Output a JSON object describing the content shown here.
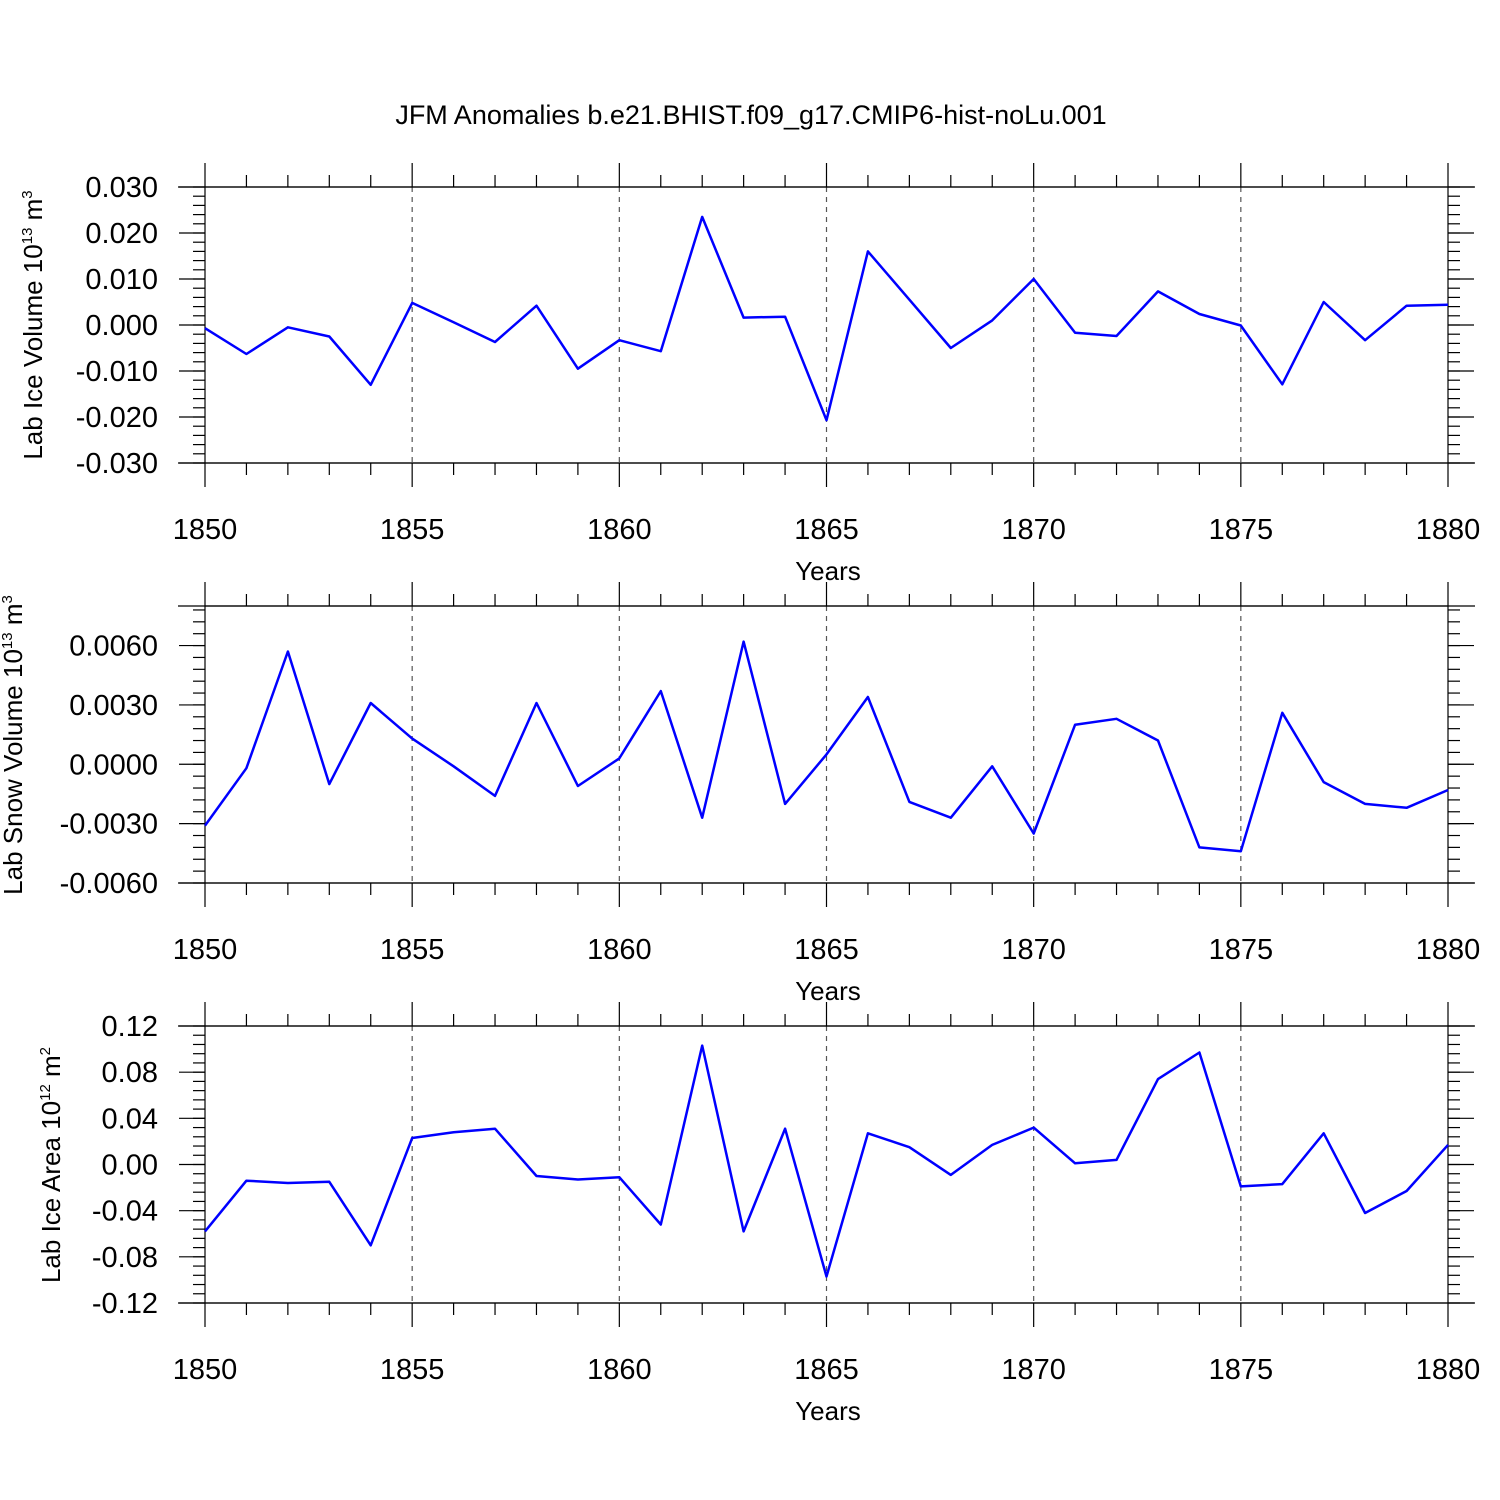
{
  "figure": {
    "title": "JFM Anomalies b.e21.BHIST.f09_g17.CMIP6-hist-noLu.001"
  },
  "colors": {
    "line": "#0000ff",
    "axes": "#000000",
    "grid": "#555555"
  },
  "chart_data": [
    {
      "type": "line",
      "title": "",
      "ylabel": "Lab Ice Volume 10",
      "ylabel_sup": "13",
      "ylabel_unit": "m",
      "ylabel_unit_sup": "3",
      "xlabel": "Years",
      "xlim": [
        1850,
        1880
      ],
      "ylim": [
        -0.03,
        0.03
      ],
      "xticks": [
        "1850",
        "1855",
        "1860",
        "1865",
        "1870",
        "1875",
        "1880"
      ],
      "yticks": [
        -0.03,
        -0.02,
        -0.01,
        0.0,
        0.01,
        0.02,
        0.03
      ],
      "yticklabels": [
        "-0.030",
        "-0.020",
        "-0.010",
        "0.000",
        "0.010",
        "0.020",
        "0.030"
      ],
      "grid": "vertical dashed at 1855, 1860, 1865, 1870, 1875",
      "series": [
        {
          "x": [
            1850,
            1851,
            1852,
            1853,
            1854,
            1855,
            1856,
            1857,
            1858,
            1859,
            1860,
            1861,
            1862,
            1863,
            1864,
            1865,
            1866,
            1867,
            1868,
            1869,
            1870,
            1871,
            1872,
            1873,
            1874,
            1875,
            1876,
            1877,
            1878,
            1879,
            1880
          ],
          "values": [
            -0.0007,
            -0.0063,
            -0.0005,
            -0.0025,
            -0.013,
            0.0048,
            0.0006,
            -0.0037,
            0.0042,
            -0.0095,
            -0.0033,
            -0.0057,
            0.0235,
            0.0016,
            0.0018,
            -0.0207,
            0.016,
            0.0055,
            -0.005,
            0.001,
            0.01,
            -0.0017,
            -0.0024,
            0.0073,
            0.0024,
            -0.0001,
            -0.0129,
            0.005,
            -0.0033,
            0.0042,
            0.0044
          ]
        }
      ]
    },
    {
      "type": "line",
      "title": "",
      "ylabel": "Lab Snow Volume 10",
      "ylabel_sup": "13",
      "ylabel_unit": "m",
      "ylabel_unit_sup": "3",
      "xlabel": "Years",
      "xlim": [
        1850,
        1880
      ],
      "ylim": [
        -0.006,
        0.008
      ],
      "xticks": [
        "1850",
        "1855",
        "1860",
        "1865",
        "1870",
        "1875",
        "1880"
      ],
      "yticks": [
        -0.006,
        -0.003,
        0.0,
        0.003,
        0.006
      ],
      "yticklabels": [
        "-0.0060",
        "-0.0030",
        "0.0000",
        "0.0030",
        "0.0060"
      ],
      "grid": "vertical dashed at 1855, 1860, 1865, 1870, 1875",
      "series": [
        {
          "x": [
            1850,
            1851,
            1852,
            1853,
            1854,
            1855,
            1856,
            1857,
            1858,
            1859,
            1860,
            1861,
            1862,
            1863,
            1864,
            1865,
            1866,
            1867,
            1868,
            1869,
            1870,
            1871,
            1872,
            1873,
            1874,
            1875,
            1876,
            1877,
            1878,
            1879,
            1880
          ],
          "values": [
            -0.0031,
            -0.0002,
            0.0057,
            -0.001,
            0.0031,
            0.0013,
            -0.0001,
            -0.0016,
            0.0031,
            -0.0011,
            0.0003,
            0.0037,
            -0.0027,
            0.0062,
            -0.002,
            0.0005,
            0.0034,
            -0.0019,
            -0.0027,
            -0.0001,
            -0.0035,
            0.002,
            0.0023,
            0.0012,
            -0.0042,
            -0.0044,
            0.0026,
            -0.0009,
            -0.002,
            -0.0022,
            -0.0013
          ]
        }
      ]
    },
    {
      "type": "line",
      "title": "",
      "ylabel": "Lab Ice Area 10",
      "ylabel_sup": "12",
      "ylabel_unit": "m",
      "ylabel_unit_sup": "2",
      "xlabel": "Years",
      "xlim": [
        1850,
        1880
      ],
      "ylim": [
        -0.12,
        0.12
      ],
      "xticks": [
        "1850",
        "1855",
        "1860",
        "1865",
        "1870",
        "1875",
        "1880"
      ],
      "yticks": [
        -0.12,
        -0.08,
        -0.04,
        0.0,
        0.04,
        0.08,
        0.12
      ],
      "yticklabels": [
        "-0.12",
        "-0.08",
        "-0.04",
        "0.00",
        "0.04",
        "0.08",
        "0.12"
      ],
      "grid": "vertical dashed at 1855, 1860, 1865, 1870, 1875",
      "series": [
        {
          "x": [
            1850,
            1851,
            1852,
            1853,
            1854,
            1855,
            1856,
            1857,
            1858,
            1859,
            1860,
            1861,
            1862,
            1863,
            1864,
            1865,
            1866,
            1867,
            1868,
            1869,
            1870,
            1871,
            1872,
            1873,
            1874,
            1875,
            1876,
            1877,
            1878,
            1879,
            1880
          ],
          "values": [
            -0.058,
            -0.014,
            -0.016,
            -0.015,
            -0.07,
            0.023,
            0.028,
            0.031,
            -0.01,
            -0.013,
            -0.011,
            -0.052,
            0.103,
            -0.058,
            0.031,
            -0.097,
            0.027,
            0.015,
            -0.009,
            0.017,
            0.032,
            0.001,
            0.004,
            0.074,
            0.097,
            -0.019,
            -0.017,
            0.027,
            -0.042,
            -0.023,
            0.017
          ]
        }
      ]
    }
  ]
}
